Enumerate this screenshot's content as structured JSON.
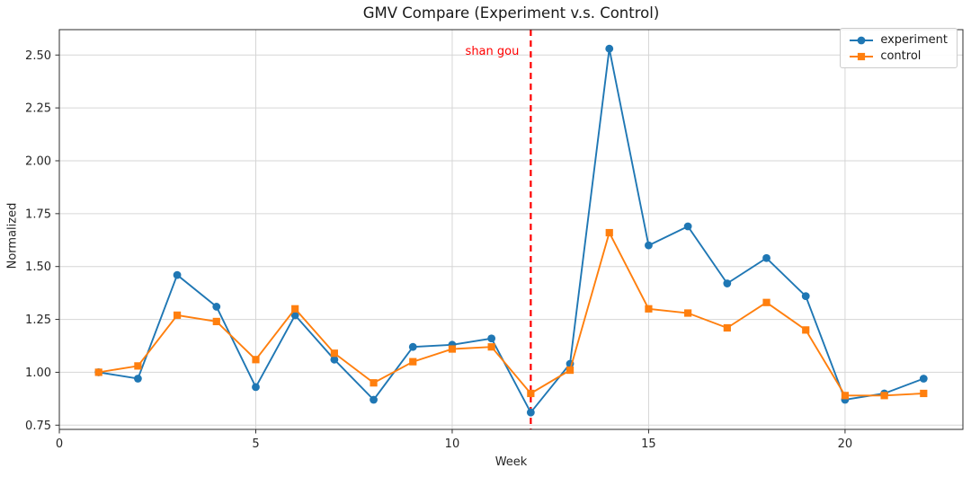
{
  "chart_data": {
    "type": "line",
    "title": "GMV Compare (Experiment v.s. Control)",
    "xlabel": "Week",
    "ylabel": "Normalized",
    "x": [
      1,
      2,
      3,
      4,
      5,
      6,
      7,
      8,
      9,
      10,
      11,
      12,
      13,
      14,
      15,
      16,
      17,
      18,
      19,
      20,
      21,
      22
    ],
    "series": [
      {
        "name": "experiment",
        "color": "#1f77b4",
        "marker": "circle",
        "values": [
          1.0,
          0.97,
          1.46,
          1.31,
          0.93,
          1.27,
          1.06,
          0.87,
          1.12,
          1.13,
          1.16,
          0.81,
          1.04,
          2.53,
          1.6,
          1.69,
          1.42,
          1.54,
          1.36,
          0.87,
          0.9,
          0.97
        ]
      },
      {
        "name": "control",
        "color": "#ff7f0e",
        "marker": "square",
        "values": [
          1.0,
          1.03,
          1.27,
          1.24,
          1.06,
          1.3,
          1.09,
          0.95,
          1.05,
          1.11,
          1.12,
          0.9,
          1.01,
          1.66,
          1.3,
          1.28,
          1.21,
          1.33,
          1.2,
          0.89,
          0.89,
          0.9
        ]
      }
    ],
    "xticks": [
      0,
      5,
      10,
      15,
      20
    ],
    "yticks": [
      0.75,
      1.0,
      1.25,
      1.5,
      1.75,
      2.0,
      2.25,
      2.5
    ],
    "xlim": [
      0,
      23
    ],
    "ylim": [
      0.73,
      2.62
    ],
    "grid": true,
    "legend_position": "upper right",
    "vline": {
      "x": 12,
      "color": "#ff0000",
      "style": "dashed"
    },
    "annotation": {
      "text": "shan gou",
      "color": "#ff0000"
    }
  },
  "colors": {
    "grid": "#d6d6d6",
    "spine": "#2e2e2e",
    "tick_label": "#262626"
  }
}
